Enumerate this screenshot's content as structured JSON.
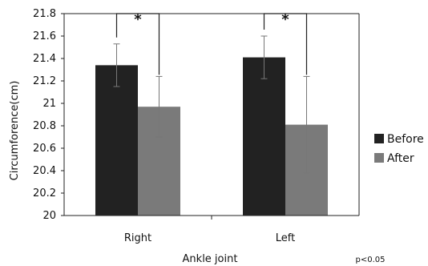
{
  "chart_data": {
    "type": "bar",
    "categories": [
      "Right",
      "Left"
    ],
    "series": [
      {
        "name": "Before",
        "values": [
          21.34,
          21.41
        ],
        "error": [
          0.19,
          0.19
        ],
        "color": "#222222"
      },
      {
        "name": "After",
        "values": [
          20.97,
          20.81
        ],
        "error": [
          0.27,
          0.43
        ],
        "color": "#7a7a7a"
      }
    ],
    "xlabel": "Ankle joint",
    "ylabel": "Circumforence(cm)",
    "ylim": [
      20,
      21.8
    ],
    "yticks": [
      "20",
      "20.2",
      "20.4",
      "20.6",
      "20.8",
      "21",
      "21.2",
      "21.4",
      "21.6",
      "21.8"
    ],
    "significance_marker": "*",
    "note": "p<0.05",
    "legend_position": "right",
    "grid": false
  }
}
